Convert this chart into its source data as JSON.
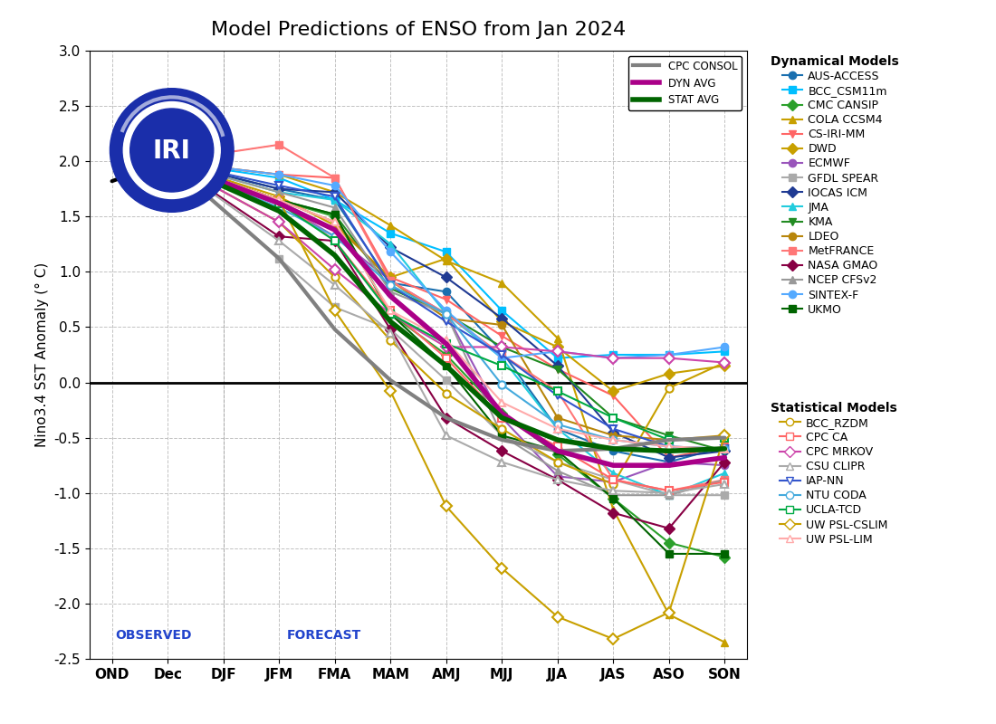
{
  "title": "Model Predictions of ENSO from Jan 2024",
  "ylabel": "Nino3.4 SST Anomaly (° C)",
  "xticks": [
    "OND",
    "Dec",
    "DJF",
    "JFM",
    "FMA",
    "MAM",
    "AMJ",
    "MJJ",
    "JJA",
    "JAS",
    "ASO",
    "SON"
  ],
  "ylim": [
    -2.5,
    3.0
  ],
  "yticks": [
    -2.5,
    -2.0,
    -1.5,
    -1.0,
    -0.5,
    0.0,
    0.5,
    1.0,
    1.5,
    2.0,
    2.5,
    3.0
  ],
  "observed_label": "OBSERVED",
  "forecast_label": "FORECAST",
  "observed": {
    "x": [
      0,
      1
    ],
    "y": [
      1.82,
      2.0
    ],
    "color": "#000000",
    "linewidth": 3
  },
  "dyn_models": {
    "AUS-ACCESS": {
      "color": "#1a6faf",
      "marker": "o",
      "x": [
        1,
        3,
        4,
        5,
        6,
        7,
        8,
        9,
        10,
        11
      ],
      "y": [
        2.0,
        1.75,
        1.65,
        0.9,
        0.82,
        0.28,
        -0.42,
        -0.62,
        -0.72,
        -0.58
      ]
    },
    "BCC_CSM11m": {
      "color": "#00bfff",
      "marker": "s",
      "x": [
        1,
        3,
        4,
        5,
        6,
        7,
        8,
        9,
        10,
        11
      ],
      "y": [
        2.0,
        1.85,
        1.65,
        1.35,
        1.18,
        0.65,
        0.22,
        0.25,
        0.25,
        0.28
      ]
    },
    "CMC CANSIP": {
      "color": "#2ca02c",
      "marker": "D",
      "x": [
        1,
        3,
        4,
        5,
        6,
        7,
        8,
        9,
        10,
        11
      ],
      "y": [
        2.0,
        1.65,
        1.5,
        0.62,
        0.25,
        -0.28,
        -0.65,
        -1.05,
        -1.45,
        -1.58
      ]
    },
    "COLA CCSM4": {
      "color": "#c8a000",
      "marker": "^",
      "x": [
        1,
        3,
        4,
        5,
        6,
        7,
        8,
        9,
        10,
        11
      ],
      "y": [
        2.0,
        1.88,
        1.72,
        1.42,
        1.1,
        0.9,
        0.4,
        -1.15,
        -2.1,
        -2.35
      ]
    },
    "CS-IRI-MM": {
      "color": "#ff6666",
      "marker": "v",
      "x": [
        1,
        3,
        4,
        5,
        6,
        7,
        8,
        9,
        10,
        11
      ],
      "y": [
        2.0,
        1.88,
        1.85,
        0.95,
        0.75,
        0.42,
        0.12,
        -0.12,
        -0.68,
        -0.58
      ]
    },
    "DWD": {
      "color": "#c8a000",
      "marker": "D",
      "x": [
        1,
        3,
        4,
        5,
        6,
        7,
        8,
        9,
        10,
        11
      ],
      "y": [
        2.0,
        1.68,
        1.42,
        0.95,
        1.12,
        0.55,
        0.32,
        -0.08,
        0.08,
        0.15
      ]
    },
    "ECMWF": {
      "color": "#9955bb",
      "marker": "o",
      "x": [
        1,
        3,
        4,
        5,
        6,
        7,
        8,
        9,
        10,
        11
      ],
      "y": [
        2.0,
        1.62,
        1.32,
        0.92,
        0.62,
        -0.32,
        -0.85,
        -0.9,
        -0.72,
        -0.75
      ]
    },
    "GFDL SPEAR": {
      "color": "#aaaaaa",
      "marker": "s",
      "x": [
        1,
        3,
        4,
        5,
        6,
        7,
        8,
        9,
        10,
        11
      ],
      "y": [
        2.0,
        1.12,
        0.68,
        0.48,
        0.02,
        -0.48,
        -0.72,
        -0.88,
        -1.02,
        -1.02
      ]
    },
    "IOCAS ICM": {
      "color": "#1f3a93",
      "marker": "D",
      "x": [
        1,
        3,
        4,
        5,
        6,
        7,
        8,
        9,
        10,
        11
      ],
      "y": [
        2.0,
        1.75,
        1.72,
        1.22,
        0.95,
        0.58,
        0.15,
        -0.45,
        -0.68,
        -0.62
      ]
    },
    "JMA": {
      "color": "#22ccdd",
      "marker": "^",
      "x": [
        1,
        3,
        4,
        5,
        6,
        7,
        8,
        9,
        10,
        11
      ],
      "y": [
        2.0,
        1.72,
        1.65,
        1.25,
        0.62,
        0.22,
        -0.42,
        -0.82,
        -1.02,
        -0.82
      ]
    },
    "KMA": {
      "color": "#228B22",
      "marker": "v",
      "x": [
        1,
        3,
        4,
        5,
        6,
        7,
        8,
        9,
        10,
        11
      ],
      "y": [
        2.0,
        1.65,
        1.52,
        0.85,
        0.62,
        0.32,
        0.12,
        -0.32,
        -0.48,
        -0.62
      ]
    },
    "LDEO": {
      "color": "#b8860b",
      "marker": "o",
      "x": [
        1,
        3,
        4,
        5,
        6,
        7,
        8,
        9,
        10,
        11
      ],
      "y": [
        2.0,
        1.65,
        1.45,
        0.92,
        0.58,
        0.52,
        -0.32,
        -0.48,
        -0.52,
        -0.48
      ]
    },
    "MetFRANCE": {
      "color": "#ff7777",
      "marker": "s",
      "x": [
        1,
        3,
        4,
        5,
        6,
        7,
        8,
        9,
        10,
        11
      ],
      "y": [
        2.0,
        2.15,
        1.85,
        0.92,
        0.62,
        0.25,
        -0.08,
        -0.88,
        -0.98,
        -0.88
      ]
    },
    "NASA GMAO": {
      "color": "#880044",
      "marker": "D",
      "x": [
        1,
        3,
        4,
        5,
        6,
        7,
        8,
        9,
        10,
        11
      ],
      "y": [
        2.0,
        1.32,
        1.28,
        0.48,
        -0.32,
        -0.62,
        -0.88,
        -1.18,
        -1.32,
        -0.72
      ]
    },
    "NCEP CFSv2": {
      "color": "#999999",
      "marker": "^",
      "x": [
        1,
        3,
        4,
        5,
        6,
        7,
        8,
        9,
        10,
        11
      ],
      "y": [
        2.0,
        1.72,
        1.58,
        0.82,
        0.62,
        -0.48,
        -0.8,
        -1.02,
        -1.02,
        -0.88
      ]
    },
    "SINTEX-F": {
      "color": "#55aaff",
      "marker": "o",
      "x": [
        1,
        3,
        4,
        5,
        6,
        7,
        8,
        9,
        10,
        11
      ],
      "y": [
        2.0,
        1.88,
        1.78,
        1.18,
        0.65,
        0.22,
        0.28,
        0.22,
        0.25,
        0.32
      ]
    },
    "UKMO": {
      "color": "#006400",
      "marker": "s",
      "x": [
        1,
        3,
        4,
        5,
        6,
        7,
        8,
        9,
        10,
        11
      ],
      "y": [
        2.0,
        1.65,
        1.52,
        0.62,
        0.15,
        -0.48,
        -0.62,
        -1.05,
        -1.55,
        -1.55
      ]
    }
  },
  "stat_models": {
    "BCC_RZDM": {
      "color": "#c8a000",
      "marker": "o",
      "x": [
        1,
        3,
        4,
        5,
        6,
        7,
        8,
        9,
        10,
        11
      ],
      "y": [
        2.0,
        1.45,
        0.95,
        0.38,
        -0.1,
        -0.42,
        -0.72,
        -0.92,
        -0.05,
        0.18
      ]
    },
    "CPC CA": {
      "color": "#ff6666",
      "marker": "s",
      "x": [
        1,
        3,
        4,
        5,
        6,
        7,
        8,
        9,
        10,
        11
      ],
      "y": [
        2.0,
        1.65,
        1.28,
        0.65,
        0.22,
        -0.32,
        -0.58,
        -0.88,
        -0.98,
        -0.9
      ]
    },
    "CPC MRKOV": {
      "color": "#cc44aa",
      "marker": "D",
      "x": [
        1,
        3,
        4,
        5,
        6,
        7,
        8,
        9,
        10,
        11
      ],
      "y": [
        2.0,
        1.45,
        1.02,
        0.62,
        0.32,
        0.32,
        0.28,
        0.22,
        0.22,
        0.18
      ]
    },
    "CSU CLIPR": {
      "color": "#aaaaaa",
      "marker": "^",
      "x": [
        1,
        3,
        4,
        5,
        6,
        7,
        8,
        9,
        10,
        11
      ],
      "y": [
        2.0,
        1.28,
        0.88,
        0.45,
        -0.48,
        -0.72,
        -0.88,
        -0.98,
        -1.0,
        -0.92
      ]
    },
    "IAP-NN": {
      "color": "#3355cc",
      "marker": "v",
      "x": [
        1,
        3,
        4,
        5,
        6,
        7,
        8,
        9,
        10,
        11
      ],
      "y": [
        2.0,
        1.78,
        1.68,
        0.88,
        0.55,
        0.25,
        -0.12,
        -0.42,
        -0.58,
        -0.6
      ]
    },
    "NTU CODA": {
      "color": "#44aadd",
      "marker": "o",
      "x": [
        1,
        3,
        4,
        5,
        6,
        7,
        8,
        9,
        10,
        11
      ],
      "y": [
        2.0,
        1.58,
        1.32,
        0.88,
        0.62,
        -0.02,
        -0.38,
        -0.52,
        -0.58,
        -0.6
      ]
    },
    "UCLA-TCD": {
      "color": "#00aa44",
      "marker": "s",
      "x": [
        1,
        3,
        4,
        5,
        6,
        7,
        8,
        9,
        10,
        11
      ],
      "y": [
        2.0,
        1.62,
        1.28,
        0.62,
        0.35,
        0.15,
        -0.08,
        -0.32,
        -0.52,
        -0.5
      ]
    },
    "UW PSL-CSLIM": {
      "color": "#c8a000",
      "marker": "D",
      "x": [
        1,
        3,
        4,
        5,
        6,
        7,
        8,
        9,
        10,
        11
      ],
      "y": [
        2.0,
        1.65,
        0.65,
        -0.08,
        -1.12,
        -1.68,
        -2.12,
        -2.32,
        -2.08,
        -0.48
      ]
    },
    "UW PSL-LIM": {
      "color": "#ffaaaa",
      "marker": "^",
      "x": [
        1,
        3,
        4,
        5,
        6,
        7,
        8,
        9,
        10,
        11
      ],
      "y": [
        2.0,
        1.65,
        1.45,
        0.65,
        0.38,
        -0.18,
        -0.42,
        -0.52,
        -0.58,
        -0.6
      ]
    }
  },
  "special_lines": {
    "CPC CONSOL": {
      "color": "#808080",
      "linewidth": 3,
      "marker": null,
      "x": [
        1,
        3,
        4,
        5,
        6,
        7,
        8,
        9,
        10,
        11
      ],
      "y": [
        2.0,
        1.12,
        0.48,
        0.02,
        -0.32,
        -0.52,
        -0.62,
        -0.6,
        -0.52,
        -0.5
      ]
    },
    "DYN AVG": {
      "color": "#aa0088",
      "linewidth": 4,
      "marker": null,
      "x": [
        1,
        3,
        4,
        5,
        6,
        7,
        8,
        9,
        10,
        11
      ],
      "y": [
        2.0,
        1.62,
        1.38,
        0.78,
        0.35,
        -0.28,
        -0.62,
        -0.75,
        -0.75,
        -0.68
      ]
    },
    "STAT AVG": {
      "color": "#006400",
      "linewidth": 4,
      "marker": null,
      "x": [
        1,
        3,
        4,
        5,
        6,
        7,
        8,
        9,
        10,
        11
      ],
      "y": [
        2.0,
        1.55,
        1.15,
        0.55,
        0.15,
        -0.32,
        -0.52,
        -0.6,
        -0.62,
        -0.6
      ]
    }
  },
  "background_color": "#ffffff",
  "grid_color": "#bbbbbb",
  "title_fontsize": 16,
  "axis_fontsize": 11,
  "legend_fontsize": 9,
  "legend_title_fontsize": 10
}
